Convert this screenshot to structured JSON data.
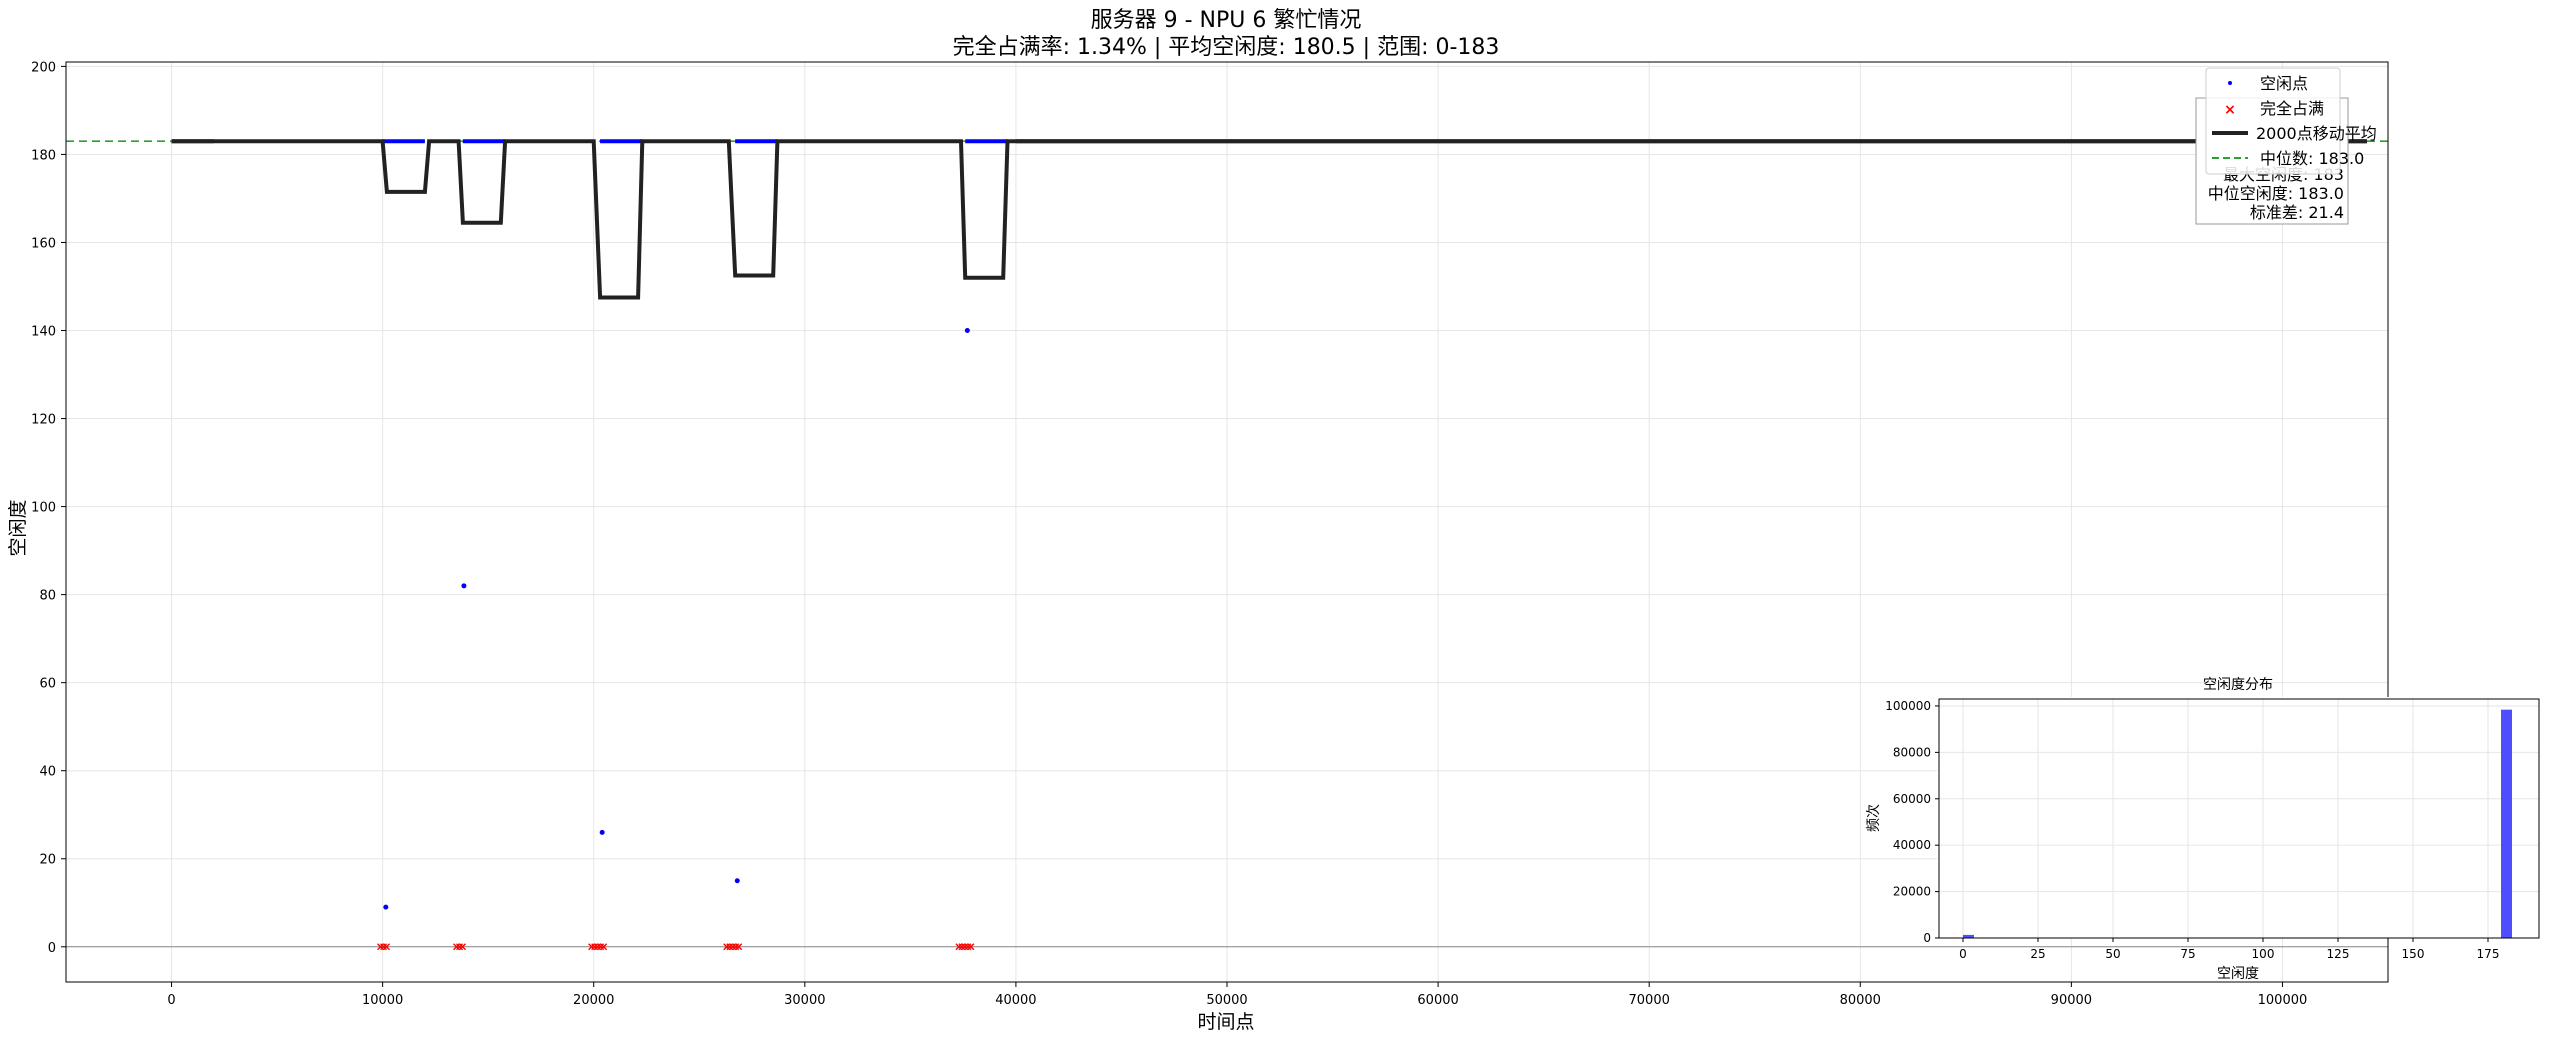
{
  "chart_data": [
    {
      "type": "scatter",
      "title": "服务器 9 - NPU 6 繁忙情况",
      "subtitle": "完全占满率: 1.34% | 平均空闲度: 180.5 | 范围: 0-183",
      "xlabel": "时间点",
      "ylabel": "空闲度",
      "xlim": [
        -5000,
        105000
      ],
      "ylim": [
        -8,
        201
      ],
      "x_ticks": [
        0,
        10000,
        20000,
        30000,
        40000,
        50000,
        60000,
        70000,
        80000,
        90000,
        100000
      ],
      "y_ticks": [
        0,
        20,
        40,
        60,
        80,
        100,
        120,
        140,
        160,
        180,
        200
      ],
      "grid": true,
      "legend": {
        "position": "top-right",
        "entries": [
          {
            "label": "空闲点",
            "marker": "dot",
            "color": "#0000ff"
          },
          {
            "label": "完全占满",
            "marker": "x",
            "color": "#ff0000"
          },
          {
            "label": "2000点移动平均",
            "marker": "line",
            "color": "#222222"
          },
          {
            "label": "中位数: 183.0",
            "marker": "dashed",
            "color": "#2ca02c"
          }
        ]
      },
      "stats_box": {
        "position": "top-right",
        "lines": [
          "最大空闲度: 183",
          "中位空闲度: 183.0",
          "标准差: 21.4"
        ]
      },
      "series": [
        {
          "name": "空闲点",
          "kind": "scatter",
          "color": "#0000ff",
          "segments": [
            [
              0,
              2000
            ],
            [
              10000,
              12000
            ],
            [
              13800,
              15800
            ],
            [
              20300,
              22300
            ],
            [
              26700,
              28700
            ],
            [
              37600,
              39600
            ],
            [
              40000,
              104000
            ]
          ],
          "segment_y": 183,
          "points": [
            {
              "x": 10150,
              "y": 9
            },
            {
              "x": 13850,
              "y": 82
            },
            {
              "x": 20400,
              "y": 26
            },
            {
              "x": 26800,
              "y": 15
            },
            {
              "x": 37700,
              "y": 140
            }
          ]
        },
        {
          "name": "完全占满",
          "kind": "scatter",
          "color": "#ff0000",
          "y": 0,
          "clusters": [
            {
              "x_start": 9900,
              "x_end": 10300
            },
            {
              "x_start": 13500,
              "x_end": 13900
            },
            {
              "x_start": 19900,
              "x_end": 20600
            },
            {
              "x_start": 26300,
              "x_end": 26900
            },
            {
              "x_start": 37300,
              "x_end": 37900
            }
          ]
        },
        {
          "name": "2000点移动平均",
          "kind": "line",
          "color": "#222222",
          "x": [
            0,
            10000,
            10200,
            12000,
            12200,
            13600,
            13800,
            15600,
            15800,
            20000,
            20300,
            22100,
            22300,
            26400,
            26700,
            28500,
            28700,
            37400,
            37600,
            39400,
            39600,
            104000
          ],
          "y": [
            183,
            183,
            171.5,
            171.5,
            183,
            183,
            164.5,
            164.5,
            183,
            183,
            147.5,
            147.5,
            183,
            183,
            152.5,
            152.5,
            183,
            183,
            152,
            152,
            183,
            183
          ]
        },
        {
          "name": "中位数: 183.0",
          "kind": "hline",
          "color": "#2ca02c",
          "y": 183
        }
      ],
      "reference_line_y": 0
    },
    {
      "type": "bar",
      "title": "空闲度分布",
      "xlabel": "空闲度",
      "ylabel": "频次",
      "xlim": [
        -8,
        192
      ],
      "ylim": [
        0,
        103000
      ],
      "x_ticks": [
        0,
        25,
        50,
        75,
        100,
        125,
        150,
        175
      ],
      "y_ticks": [
        0,
        20000,
        40000,
        60000,
        80000,
        100000
      ],
      "grid": true,
      "color": "#4444ff",
      "bins": [
        {
          "x0": 0,
          "x1": 3.66,
          "count": 1340
        },
        {
          "x0": 179.34,
          "x1": 183,
          "count": 98400
        }
      ]
    }
  ]
}
